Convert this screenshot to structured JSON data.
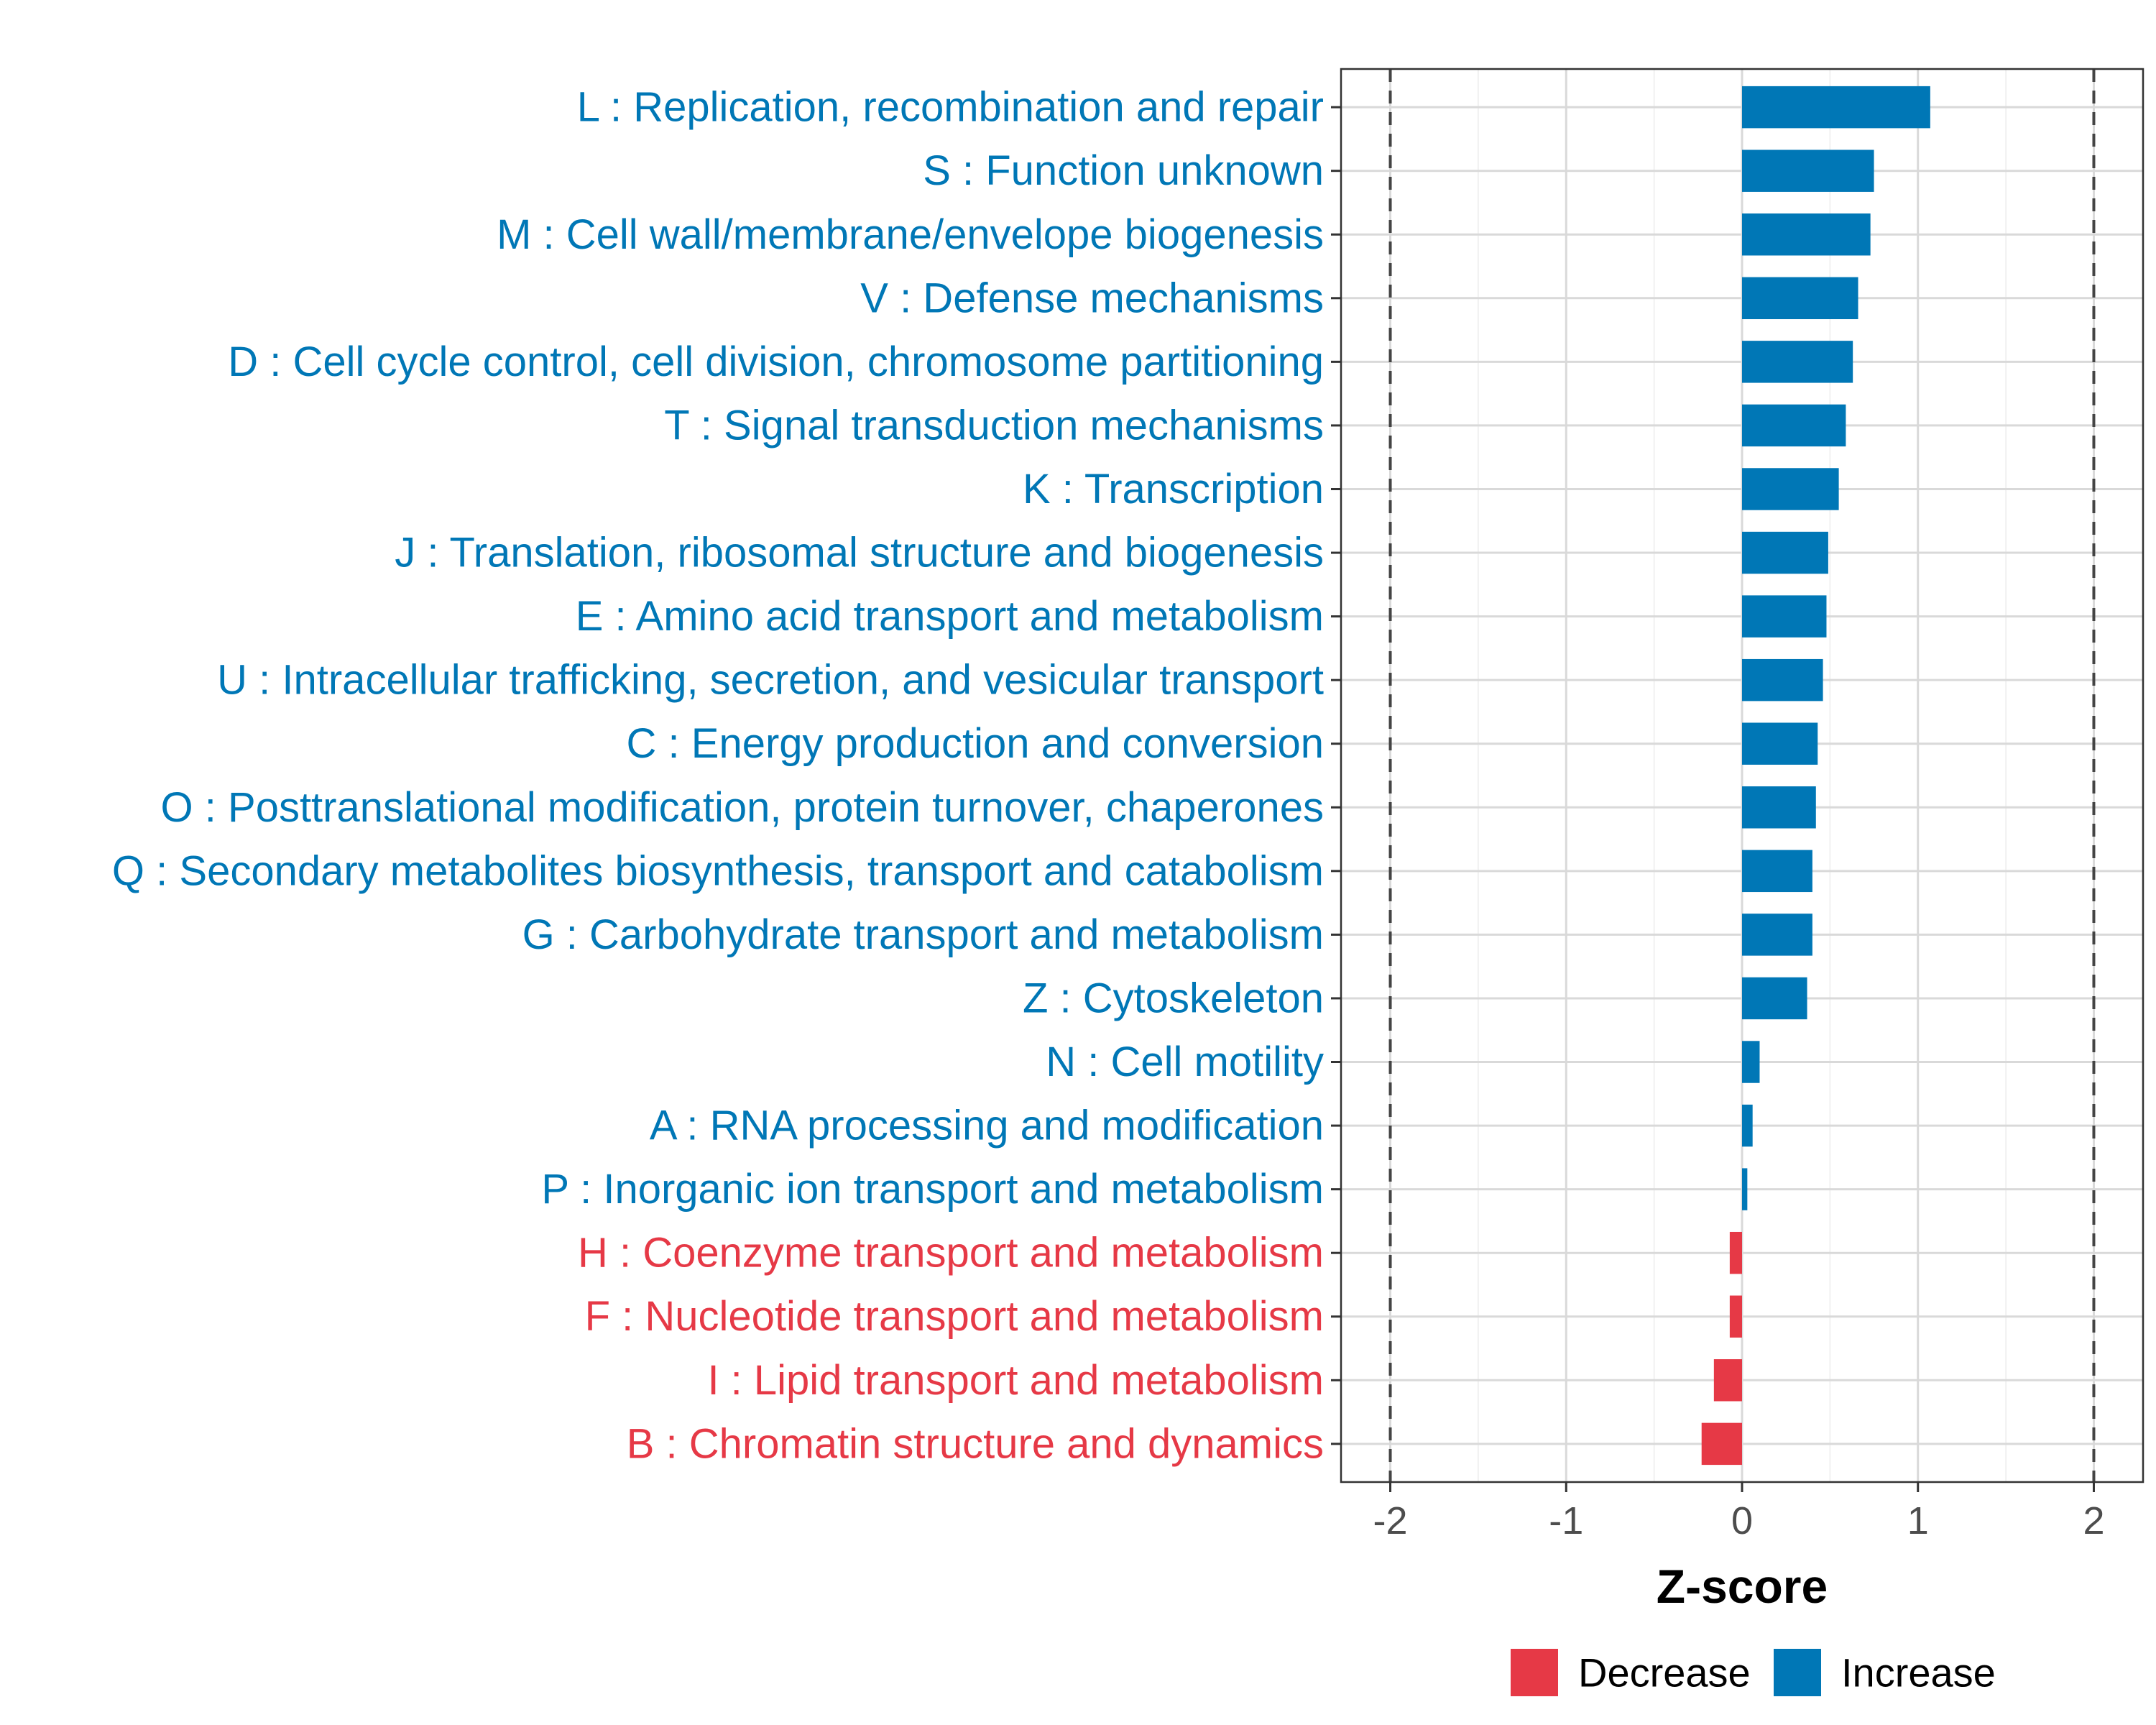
{
  "chart_data": {
    "type": "bar",
    "orientation": "horizontal",
    "xlabel": "Z-score",
    "ylabel": "",
    "xlim": [
      -2.28,
      2.28
    ],
    "x_ticks": [
      -2,
      -1,
      0,
      1,
      2
    ],
    "x_tick_labels": [
      "-2",
      "-1",
      "0",
      "1",
      "2"
    ],
    "reference_lines": [
      -2,
      2
    ],
    "grid": true,
    "legend_position": "bottom",
    "colors": {
      "Decrease": "#e63946",
      "Increase": "#0077b6",
      "grid": "#d9d9d9",
      "border": "#333333",
      "refline": "#444444"
    },
    "legend": [
      {
        "key": "decrease",
        "label": "Decrease"
      },
      {
        "key": "increase",
        "label": "Increase"
      }
    ],
    "categories": [
      "L : Replication, recombination and repair",
      "S : Function unknown",
      "M : Cell wall/membrane/envelope biogenesis",
      "V : Defense mechanisms",
      "D : Cell cycle control, cell division, chromosome partitioning",
      "T : Signal transduction mechanisms",
      "K : Transcription",
      "J : Translation, ribosomal structure and biogenesis",
      "E : Amino acid transport and metabolism",
      "U : Intracellular trafficking, secretion, and vesicular transport",
      "C : Energy production and conversion",
      "O : Posttranslational modification, protein turnover, chaperones",
      "Q : Secondary metabolites biosynthesis, transport and catabolism",
      "G : Carbohydrate transport and metabolism",
      "Z : Cytoskeleton",
      "N : Cell motility",
      "A : RNA processing and modification",
      "P : Inorganic ion transport and metabolism",
      "H : Coenzyme transport and metabolism",
      "F : Nucleotide transport and metabolism",
      "I : Lipid transport and metabolism",
      "B : Chromatin structure and dynamics"
    ],
    "values": [
      1.07,
      0.75,
      0.73,
      0.66,
      0.63,
      0.59,
      0.55,
      0.49,
      0.48,
      0.46,
      0.43,
      0.42,
      0.4,
      0.4,
      0.37,
      0.1,
      0.06,
      0.03,
      -0.07,
      -0.07,
      -0.16,
      -0.23
    ],
    "direction": [
      "Increase",
      "Increase",
      "Increase",
      "Increase",
      "Increase",
      "Increase",
      "Increase",
      "Increase",
      "Increase",
      "Increase",
      "Increase",
      "Increase",
      "Increase",
      "Increase",
      "Increase",
      "Increase",
      "Increase",
      "Increase",
      "Decrease",
      "Decrease",
      "Decrease",
      "Decrease"
    ]
  }
}
